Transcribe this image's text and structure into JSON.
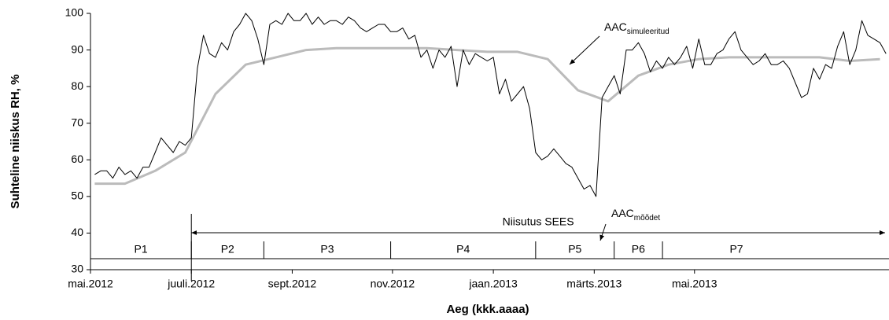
{
  "chart_data": {
    "type": "line",
    "y_label": "Suhteline niiskus RH, %",
    "x_label": "Aeg (kkk.aaaa)",
    "xlim": [
      2012.333,
      2013.655
    ],
    "ylim": [
      30,
      100
    ],
    "yticks": [
      30,
      40,
      50,
      60,
      70,
      80,
      90,
      100
    ],
    "xticks": [
      {
        "value": 2012.333,
        "label": "mai.2012"
      },
      {
        "value": 2012.5,
        "label": "juuli.2012"
      },
      {
        "value": 2012.667,
        "label": "sept.2012"
      },
      {
        "value": 2012.833,
        "label": "nov.2012"
      },
      {
        "value": 2013.0,
        "label": "jaan.2013"
      },
      {
        "value": 2013.167,
        "label": "märts.2013"
      },
      {
        "value": 2013.333,
        "label": "mai.2013"
      }
    ],
    "series": [
      {
        "color": "#000000",
        "width": 1,
        "x": [
          2012.34,
          2012.35,
          2012.36,
          2012.37,
          2012.38,
          2012.39,
          2012.4,
          2012.41,
          2012.42,
          2012.43,
          2012.44,
          2012.45,
          2012.46,
          2012.47,
          2012.48,
          2012.49,
          2012.5,
          2012.51,
          2012.52,
          2012.53,
          2012.54,
          2012.55,
          2012.56,
          2012.57,
          2012.58,
          2012.59,
          2012.6,
          2012.61,
          2012.62,
          2012.63,
          2012.64,
          2012.65,
          2012.66,
          2012.67,
          2012.68,
          2012.69,
          2012.7,
          2012.71,
          2012.72,
          2012.73,
          2012.74,
          2012.75,
          2012.76,
          2012.77,
          2012.78,
          2012.79,
          2012.8,
          2012.81,
          2012.82,
          2012.83,
          2012.84,
          2012.85,
          2012.86,
          2012.87,
          2012.88,
          2012.89,
          2012.9,
          2012.91,
          2012.92,
          2012.93,
          2012.94,
          2012.95,
          2012.96,
          2012.97,
          2012.98,
          2012.99,
          2013.0,
          2013.01,
          2013.02,
          2013.03,
          2013.04,
          2013.05,
          2013.06,
          2013.07,
          2013.08,
          2013.09,
          2013.1,
          2013.11,
          2013.12,
          2013.13,
          2013.14,
          2013.15,
          2013.16,
          2013.17,
          2013.18,
          2013.19,
          2013.2,
          2013.21,
          2013.22,
          2013.23,
          2013.24,
          2013.25,
          2013.26,
          2013.27,
          2013.28,
          2013.29,
          2013.3,
          2013.31,
          2013.32,
          2013.33,
          2013.34,
          2013.35,
          2013.36,
          2013.37,
          2013.38,
          2013.39,
          2013.4,
          2013.41,
          2013.42,
          2013.43,
          2013.44,
          2013.45,
          2013.46,
          2013.47,
          2013.48,
          2013.49,
          2013.5,
          2013.51,
          2013.52,
          2013.53,
          2013.54,
          2013.55,
          2013.56,
          2013.57,
          2013.58,
          2013.59,
          2013.6,
          2013.61,
          2013.62,
          2013.63,
          2013.64,
          2013.65
        ],
        "values": [
          56,
          57,
          57,
          55,
          58,
          56,
          57,
          55,
          58,
          58,
          62,
          66,
          64,
          62,
          65,
          64,
          66,
          85,
          94,
          89,
          88,
          92,
          90,
          95,
          97,
          100,
          98,
          93,
          86,
          97,
          98,
          97,
          100,
          98,
          98,
          100,
          97,
          99,
          97,
          98,
          98,
          97,
          99,
          98,
          96,
          95,
          96,
          97,
          97,
          95,
          95,
          96,
          93,
          94,
          88,
          90,
          85,
          90,
          88,
          91,
          80,
          90,
          86,
          89,
          88,
          87,
          88,
          78,
          82,
          76,
          78,
          80,
          74,
          62,
          60,
          61,
          63,
          61,
          59,
          58,
          55,
          52,
          53,
          50,
          77,
          80,
          83,
          78,
          90,
          90,
          92,
          89,
          84,
          87,
          85,
          88,
          86,
          88,
          91,
          85,
          93,
          86,
          86,
          89,
          90,
          93,
          95,
          90,
          88,
          86,
          87,
          89,
          86,
          86,
          87,
          85,
          81,
          77,
          78,
          85,
          82,
          86,
          85,
          91,
          95,
          86,
          90,
          98,
          94,
          93,
          92,
          89
        ]
      },
      {
        "color": "#bbbbbb",
        "width": 3,
        "x": [
          2012.34,
          2012.39,
          2012.44,
          2012.49,
          2012.54,
          2012.59,
          2012.64,
          2012.69,
          2012.74,
          2012.79,
          2012.84,
          2012.89,
          2012.94,
          2012.99,
          2013.04,
          2013.09,
          2013.14,
          2013.19,
          2013.24,
          2013.29,
          2013.34,
          2013.39,
          2013.44,
          2013.49,
          2013.54,
          2013.59,
          2013.64
        ],
        "values": [
          53.5,
          53.5,
          57,
          62,
          78,
          86,
          88,
          90,
          90.5,
          90.5,
          90.5,
          90.5,
          90,
          89.5,
          89.5,
          87.5,
          79,
          76,
          83,
          86,
          87.5,
          88,
          88,
          88,
          88,
          87,
          87.5
        ]
      }
    ],
    "annotations": [
      {
        "text": "AAC",
        "sub": "simuleeritud"
      },
      {
        "text": "AAC",
        "sub": "mõõdet"
      }
    ],
    "periods": [
      "P1",
      "P2",
      "P3",
      "P4",
      "P5",
      "P6",
      "P7"
    ],
    "period_bounds": [
      2012.5,
      2012.62,
      2012.83,
      2013.07,
      2013.2,
      2013.28
    ],
    "irrigation": {
      "label": "Niisutus SEES",
      "start": 2012.5
    }
  }
}
